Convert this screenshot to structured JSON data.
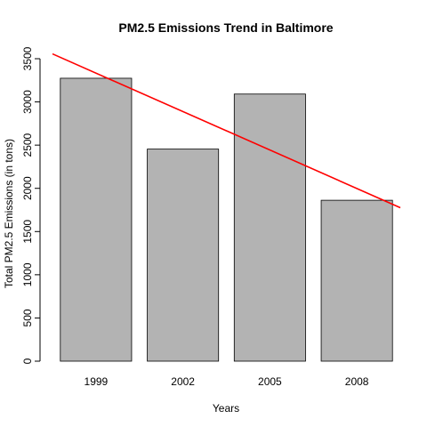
{
  "chart_data": {
    "type": "bar",
    "title": "PM2.5 Emissions Trend in Baltimore",
    "xlabel": "Years",
    "ylabel": "Total PM2.5 Emissions (in tons)",
    "categories": [
      "1999",
      "2002",
      "2005",
      "2008"
    ],
    "values": [
      3274,
      2454,
      3091,
      1862
    ],
    "ylim": [
      0,
      3500
    ],
    "yticks": [
      0,
      500,
      1000,
      1500,
      2000,
      2500,
      3000,
      3500
    ],
    "grid": false,
    "bar_color": "#b3b3b3",
    "trend_line": {
      "color": "#ff0000",
      "start_value": 3556,
      "end_value": 1776
    }
  }
}
